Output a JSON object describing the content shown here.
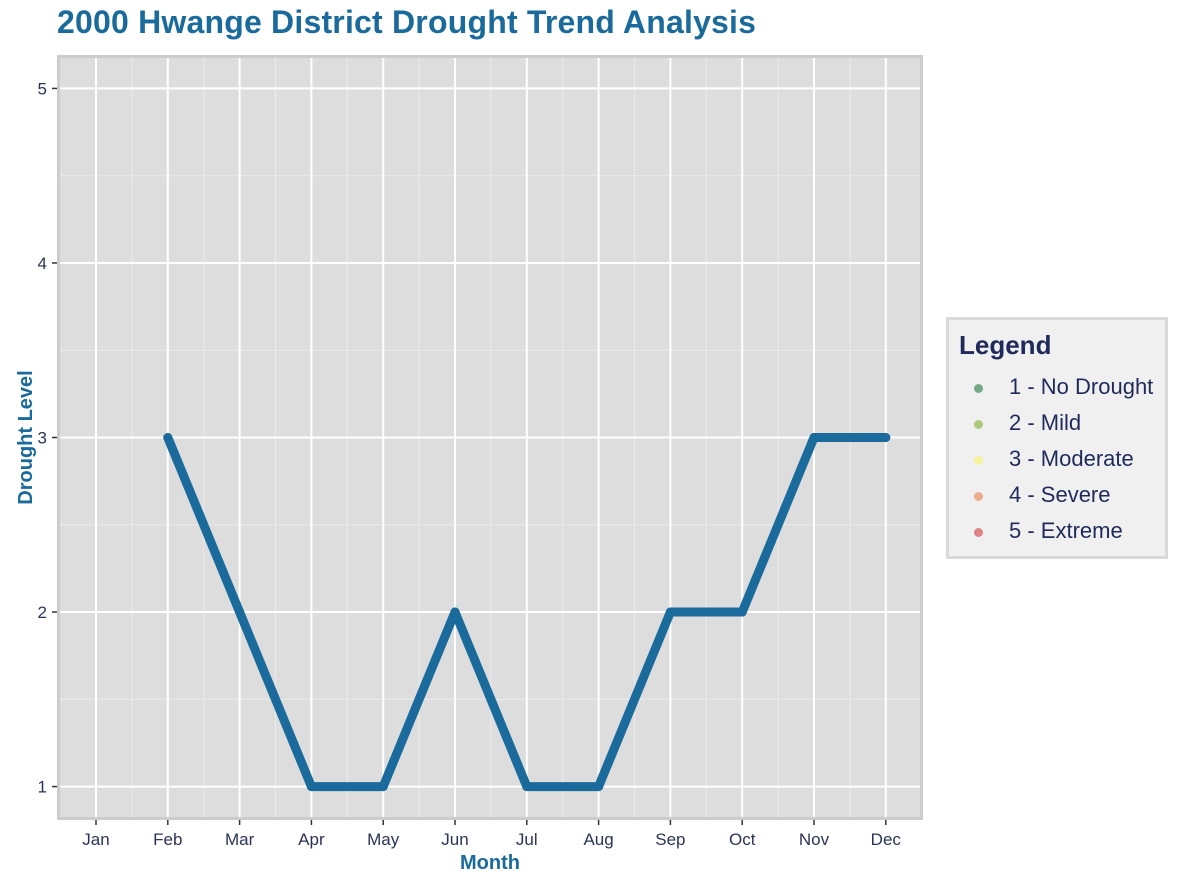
{
  "chart_data": {
    "type": "line",
    "title": "2000 Hwange District Drought Trend Analysis",
    "xlabel": "Month",
    "ylabel": "Drought Level",
    "categories": [
      "Jan",
      "Feb",
      "Mar",
      "Apr",
      "May",
      "Jun",
      "Jul",
      "Aug",
      "Sep",
      "Oct",
      "Nov",
      "Dec"
    ],
    "series": [
      {
        "values": [
          null,
          3,
          2,
          1,
          1,
          2,
          1,
          1,
          2,
          2,
          3,
          3
        ],
        "color": "#1a6b9c"
      }
    ],
    "ylim": [
      0.82,
      5.18
    ],
    "yticks": [
      "1",
      "2",
      "3",
      "4",
      "5"
    ],
    "grid": true,
    "legend": {
      "title": "Legend",
      "placement": "right",
      "items": [
        {
          "label": "1 - No Drought",
          "color": "#1a7a3a"
        },
        {
          "label": "2 - Mild",
          "color": "#7fb02a"
        },
        {
          "label": "3 - Moderate",
          "color": "#f5f566"
        },
        {
          "label": "4 - Severe",
          "color": "#e8804a"
        },
        {
          "label": "5 - Extreme",
          "color": "#d43a3a"
        }
      ]
    }
  }
}
